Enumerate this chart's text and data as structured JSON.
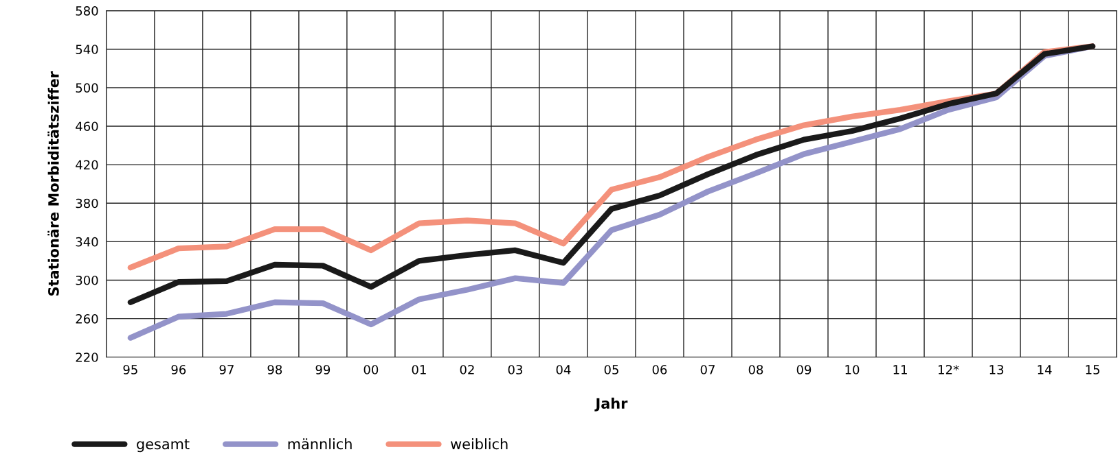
{
  "chart_data": {
    "type": "line",
    "xlabel": "Jahr",
    "ylabel": "Stationäre Morbiditätsziffer",
    "categories": [
      "95",
      "96",
      "97",
      "98",
      "99",
      "00",
      "01",
      "02",
      "03",
      "04",
      "05",
      "06",
      "07",
      "08",
      "09",
      "10",
      "11",
      "12*",
      "13",
      "14",
      "15"
    ],
    "series": [
      {
        "name": "gesamt",
        "color": "#1a1a1a",
        "values": [
          277,
          298,
          299,
          316,
          315,
          293,
          320,
          326,
          331,
          318,
          374,
          388,
          410,
          430,
          446,
          455,
          468,
          483,
          494,
          535,
          543
        ]
      },
      {
        "name": "männlich",
        "color": "#9393c9",
        "values": [
          240,
          262,
          265,
          277,
          276,
          254,
          280,
          290,
          302,
          297,
          352,
          368,
          392,
          411,
          431,
          444,
          457,
          477,
          490,
          533,
          543
        ]
      },
      {
        "name": "weiblich",
        "color": "#f4917b",
        "values": [
          313,
          333,
          335,
          353,
          353,
          331,
          359,
          362,
          359,
          338,
          394,
          407,
          428,
          446,
          461,
          470,
          477,
          486,
          494,
          537,
          543
        ]
      }
    ],
    "ylim": [
      220,
      580
    ],
    "yticks": [
      220,
      260,
      300,
      340,
      380,
      420,
      460,
      500,
      540,
      580
    ],
    "grid": true,
    "legend": "bottom left",
    "marker": "none",
    "line_style": "solid"
  }
}
